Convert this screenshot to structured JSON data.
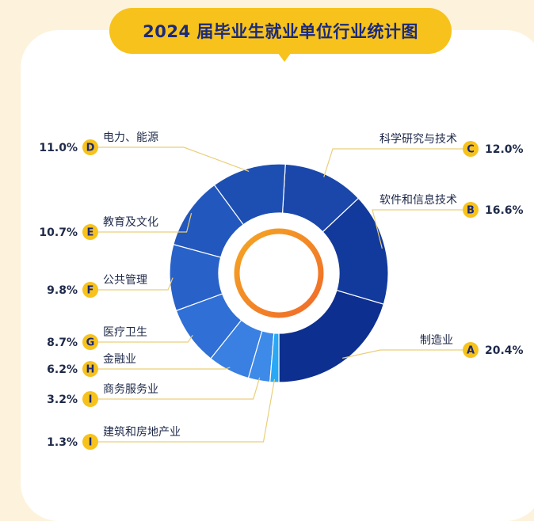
{
  "chart_data": {
    "type": "pie",
    "variant": "donut",
    "title": "2024 届毕业生就业单位行业统计图",
    "legend": "none",
    "slices": [
      {
        "label": "制造业",
        "badge": "A",
        "value": 20.4,
        "value_label": "20.4%",
        "color": "#0d2f8f"
      },
      {
        "label": "软件和信息技术",
        "badge": "B",
        "value": 16.6,
        "value_label": "16.6%",
        "color": "#123a9c"
      },
      {
        "label": "科学研究与技术",
        "badge": "C",
        "value": 12.0,
        "value_label": "12.0%",
        "color": "#1a47a9"
      },
      {
        "label": "电力、能源",
        "badge": "D",
        "value": 11.0,
        "value_label": "11.0%",
        "color": "#1d4fb3"
      },
      {
        "label": "教育及文化",
        "badge": "E",
        "value": 10.7,
        "value_label": "10.7%",
        "color": "#2257bd"
      },
      {
        "label": "公共管理",
        "badge": "F",
        "value": 9.8,
        "value_label": "9.8%",
        "color": "#2862c9"
      },
      {
        "label": "医疗卫生",
        "badge": "G",
        "value": 8.7,
        "value_label": "8.7%",
        "color": "#2f6fd6"
      },
      {
        "label": "金融业",
        "badge": "H",
        "value": 6.2,
        "value_label": "6.2%",
        "color": "#3a7fe2"
      },
      {
        "label": "商务服务业",
        "badge": "I",
        "value": 3.2,
        "value_label": "3.2%",
        "color": "#3d8ae8"
      },
      {
        "label": "建筑和房地产业",
        "badge": "I",
        "value": 1.3,
        "value_label": "1.3%",
        "color": "#29a8f5"
      }
    ]
  },
  "colors": {
    "badge": "#f7c21b",
    "leader": "#e9cf7a",
    "inner_ring_start": "#f5a623",
    "inner_ring_end": "#f06a2a"
  }
}
